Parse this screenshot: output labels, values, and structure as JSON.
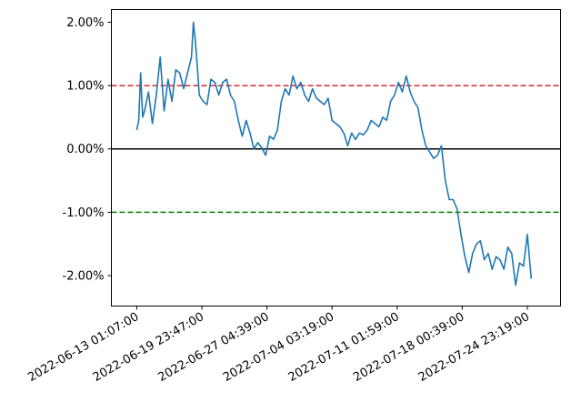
{
  "chart_data": {
    "type": "line",
    "title": "",
    "xlabel": "",
    "ylabel": "",
    "x_tick_labels": [
      "2022-06-13 01:07:00",
      "2022-06-19 23:47:00",
      "2022-06-27 04:39:00",
      "2022-07-04 03:19:00",
      "2022-07-11 01:59:00",
      "2022-07-18 00:39:00",
      "2022-07-24 23:19:00"
    ],
    "y_ticks": [
      0.02,
      0.01,
      0.0,
      -0.01,
      -0.02
    ],
    "y_tick_labels": [
      "2.00%",
      "1.00%",
      "0.00%",
      "-1.00%",
      "-2.00%"
    ],
    "ylim": [
      -0.0248,
      0.022
    ],
    "xlim": [
      -0.065,
      1.085
    ],
    "reference_lines": [
      {
        "y": 0.01,
        "color": "#d62728",
        "style": "dashed"
      },
      {
        "y": 0.0,
        "color": "#000000",
        "style": "solid"
      },
      {
        "y": -0.01,
        "color": "#008000",
        "style": "dashed"
      }
    ],
    "series": [
      {
        "color": "#1f77b4",
        "x": [
          0.0,
          0.005,
          0.01,
          0.015,
          0.02,
          0.03,
          0.04,
          0.05,
          0.06,
          0.07,
          0.08,
          0.09,
          0.1,
          0.11,
          0.12,
          0.13,
          0.14,
          0.145,
          0.15,
          0.155,
          0.16,
          0.17,
          0.18,
          0.19,
          0.2,
          0.21,
          0.22,
          0.23,
          0.24,
          0.25,
          0.26,
          0.27,
          0.28,
          0.29,
          0.3,
          0.31,
          0.32,
          0.33,
          0.34,
          0.35,
          0.36,
          0.37,
          0.38,
          0.39,
          0.4,
          0.41,
          0.42,
          0.43,
          0.44,
          0.45,
          0.46,
          0.47,
          0.48,
          0.49,
          0.5,
          0.51,
          0.52,
          0.53,
          0.54,
          0.55,
          0.56,
          0.57,
          0.58,
          0.59,
          0.6,
          0.61,
          0.62,
          0.63,
          0.64,
          0.65,
          0.66,
          0.67,
          0.68,
          0.69,
          0.7,
          0.71,
          0.72,
          0.73,
          0.74,
          0.75,
          0.76,
          0.77,
          0.78,
          0.79,
          0.8,
          0.81,
          0.82,
          0.83,
          0.84,
          0.85,
          0.86,
          0.87,
          0.88,
          0.89,
          0.9,
          0.91,
          0.92,
          0.93,
          0.94,
          0.95,
          0.96,
          0.97,
          0.98,
          0.99,
          1.0,
          1.01
        ],
        "y": [
          0.003,
          0.0045,
          0.012,
          0.005,
          0.006,
          0.009,
          0.004,
          0.0085,
          0.0145,
          0.006,
          0.011,
          0.0075,
          0.0125,
          0.012,
          0.0095,
          0.012,
          0.0145,
          0.02,
          0.017,
          0.013,
          0.0085,
          0.0075,
          0.007,
          0.011,
          0.0105,
          0.0085,
          0.0105,
          0.011,
          0.0085,
          0.0075,
          0.0045,
          0.002,
          0.0045,
          0.0025,
          0.0,
          0.001,
          0.0002,
          -0.001,
          0.002,
          0.0015,
          0.003,
          0.0075,
          0.0095,
          0.0085,
          0.0115,
          0.0095,
          0.0105,
          0.0085,
          0.0075,
          0.0095,
          0.008,
          0.0075,
          0.007,
          0.008,
          0.0045,
          0.004,
          0.0035,
          0.0025,
          0.0005,
          0.0025,
          0.0015,
          0.0025,
          0.0022,
          0.003,
          0.0045,
          0.004,
          0.0035,
          0.005,
          0.0045,
          0.0075,
          0.0085,
          0.0105,
          0.009,
          0.0115,
          0.009,
          0.0075,
          0.0065,
          0.003,
          0.0005,
          -0.0005,
          -0.0015,
          -0.001,
          0.0005,
          -0.005,
          -0.008,
          -0.008,
          -0.0095,
          -0.0135,
          -0.017,
          -0.0195,
          -0.0165,
          -0.015,
          -0.0145,
          -0.0175,
          -0.0165,
          -0.019,
          -0.017,
          -0.0175,
          -0.019,
          -0.0155,
          -0.0165,
          -0.0215,
          -0.018,
          -0.0185,
          -0.0135,
          -0.0205
        ]
      }
    ]
  }
}
